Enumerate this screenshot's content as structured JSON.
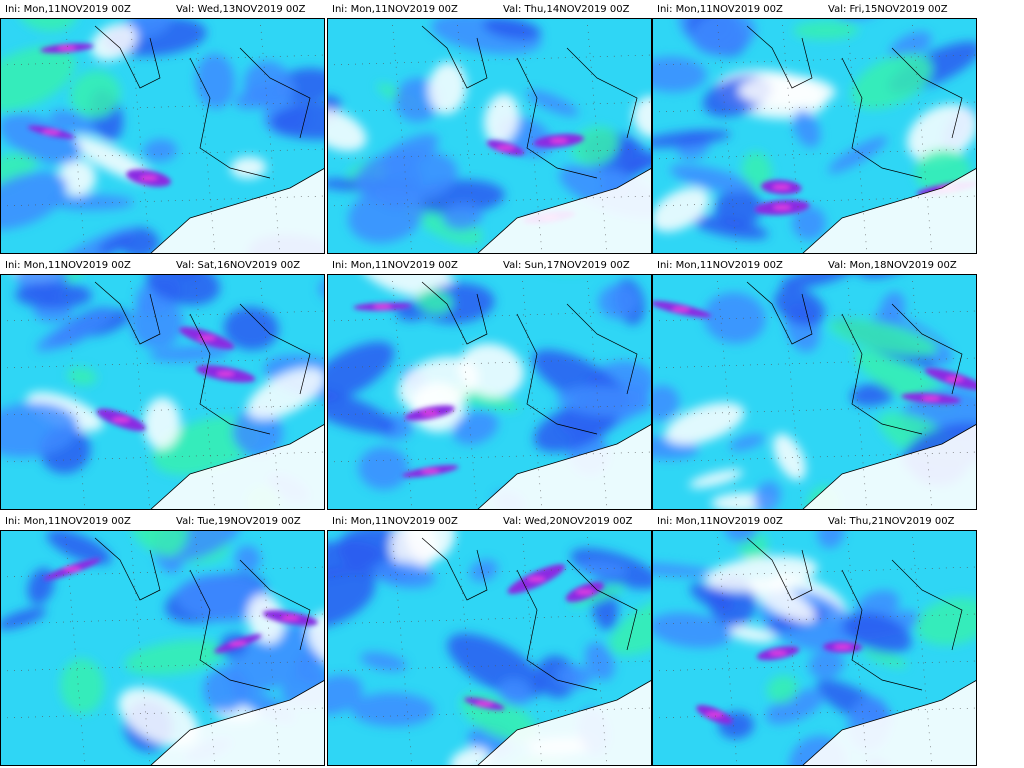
{
  "panels": [
    {
      "init": "Ini: Mon,11NOV2019 00Z",
      "valid": "Val: Wed,13NOV2019 00Z"
    },
    {
      "init": "Ini: Mon,11NOV2019 00Z",
      "valid": "Val: Thu,14NOV2019 00Z"
    },
    {
      "init": "Ini: Mon,11NOV2019 00Z",
      "valid": "Val: Fri,15NOV2019 00Z"
    },
    {
      "init": "Ini: Mon,11NOV2019 00Z",
      "valid": "Val: Sat,16NOV2019 00Z"
    },
    {
      "init": "Ini: Mon,11NOV2019 00Z",
      "valid": "Val: Sun,17NOV2019 00Z"
    },
    {
      "init": "Ini: Mon,11NOV2019 00Z",
      "valid": "Val: Mon,18NOV2019 00Z"
    },
    {
      "init": "Ini: Mon,11NOV2019 00Z",
      "valid": "Val: Tue,19NOV2019 00Z"
    },
    {
      "init": "Ini: Mon,11NOV2019 00Z",
      "valid": "Val: Wed,20NOV2019 00Z"
    },
    {
      "init": "Ini: Mon,11NOV2019 00Z",
      "valid": "Val: Thu,21NOV2019 00Z"
    }
  ]
}
